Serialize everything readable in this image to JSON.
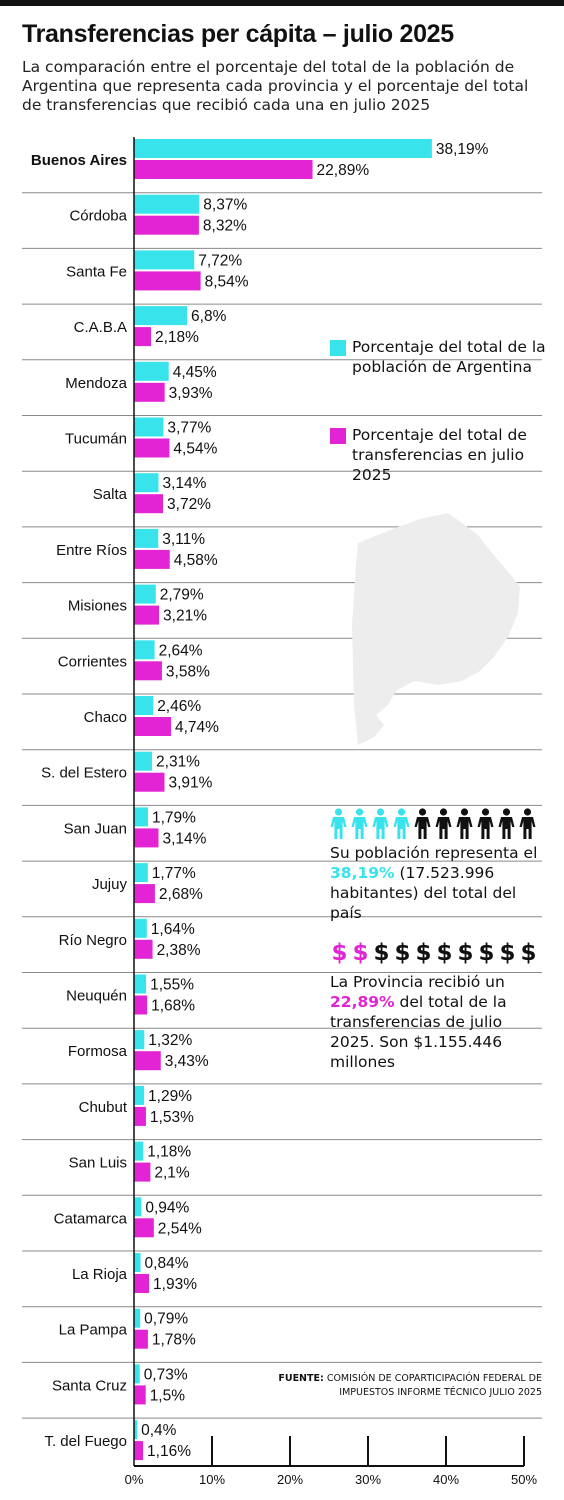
{
  "title": "Transferencias per cápita – julio 2025",
  "subtitle": "La comparación entre el porcentaje del total de la población de Argentina que representa cada provincia y el porcentaje del total de transferencias que recibió cada una en julio 2025",
  "legend": {
    "population": "Porcentaje del total de la población de Argentina",
    "transfers": "Porcentaje del total de transferencias en julio 2025"
  },
  "colors": {
    "population": "#39e3ec",
    "transfers": "#e224d4",
    "ink": "#111111",
    "map": "#ededed"
  },
  "highlight": {
    "population_text_before": "Su población representa el ",
    "population_pct": "38,19%",
    "population_text_after": " (17.523.996 habitantes) del total del país",
    "transfers_text_before": "La Provincia recibió un ",
    "transfers_pct": "22,89%",
    "transfers_text_after": " del total de la transferencias de julio 2025. Son $1.155.446 millones",
    "people_highlighted": 4,
    "people_total": 10,
    "dollars_highlighted": 2,
    "dollars_total": 10,
    "dollar_symbol": "$"
  },
  "source": {
    "label": "FUENTE:",
    "text": "Comisión de Coparticipación Federal de Impuestos Informe Técnico julio 2025"
  },
  "chart_data": {
    "type": "bar",
    "orientation": "horizontal",
    "xlim": [
      0,
      50
    ],
    "xticks": [
      0,
      10,
      20,
      30,
      40,
      50
    ],
    "xtick_labels": [
      "0%",
      "10%",
      "20%",
      "30%",
      "40%",
      "50%"
    ],
    "categories": [
      "Buenos Aires",
      "Córdoba",
      "Santa Fe",
      "C.A.B.A",
      "Mendoza",
      "Tucumán",
      "Salta",
      "Entre Ríos",
      "Misiones",
      "Corrientes",
      "Chaco",
      "S. del Estero",
      "San Juan",
      "Jujuy",
      "Río Negro",
      "Neuquén",
      "Formosa",
      "Chubut",
      "San Luis",
      "Catamarca",
      "La Rioja",
      "La Pampa",
      "Santa Cruz",
      "T. del Fuego"
    ],
    "bold_category": "Buenos Aires",
    "series": [
      {
        "name": "Porcentaje del total de la población de Argentina",
        "values": [
          38.19,
          8.37,
          7.72,
          6.8,
          4.45,
          3.77,
          3.14,
          3.11,
          2.79,
          2.64,
          2.46,
          2.31,
          1.79,
          1.77,
          1.64,
          1.55,
          1.32,
          1.29,
          1.18,
          0.94,
          0.84,
          0.79,
          0.73,
          0.4
        ],
        "labels": [
          "38,19%",
          "8,37%",
          "7,72%",
          "6,8%",
          "4,45%",
          "3,77%",
          "3,14%",
          "3,11%",
          "2,79%",
          "2,64%",
          "2,46%",
          "2,31%",
          "1,79%",
          "1,77%",
          "1,64%",
          "1,55%",
          "1,32%",
          "1,29%",
          "1,18%",
          "0,94%",
          "0,84%",
          "0,79%",
          "0,73%",
          "0,4%"
        ]
      },
      {
        "name": "Porcentaje del total de transferencias en julio 2025",
        "values": [
          22.89,
          8.32,
          8.54,
          2.18,
          3.93,
          4.54,
          3.72,
          4.58,
          3.21,
          3.58,
          4.74,
          3.91,
          3.14,
          2.68,
          2.38,
          1.68,
          3.43,
          1.53,
          2.1,
          2.54,
          1.93,
          1.78,
          1.5,
          1.16
        ],
        "labels": [
          "22,89%",
          "8,32%",
          "8,54%",
          "2,18%",
          "3,93%",
          "4,54%",
          "3,72%",
          "4,58%",
          "3,21%",
          "3,58%",
          "4,74%",
          "3,91%",
          "3,14%",
          "2,68%",
          "2,38%",
          "1,68%",
          "3,43%",
          "1,53%",
          "2,1%",
          "2,54%",
          "1,93%",
          "1,78%",
          "1,5%",
          "1,16%"
        ]
      }
    ]
  }
}
